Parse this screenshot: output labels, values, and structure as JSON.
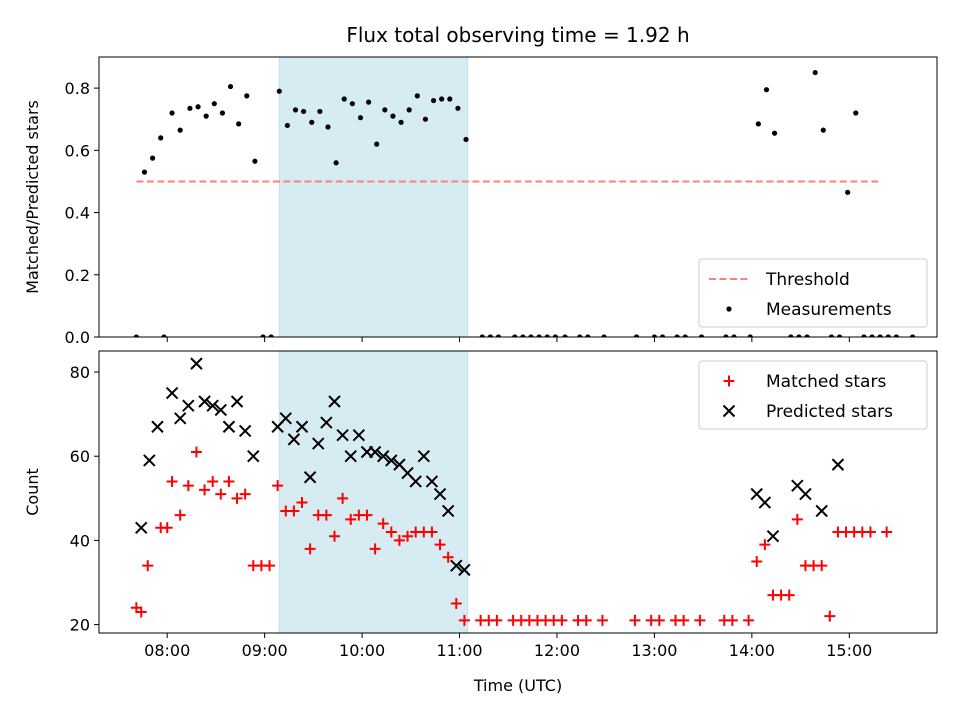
{
  "chart_data": {
    "title": "Flux total observing time = 1.92 h",
    "xlabel": "Time (UTC)",
    "x_range": [
      "07:18",
      "15:54"
    ],
    "x_ticks": [
      "08:00",
      "09:00",
      "10:00",
      "11:00",
      "12:00",
      "13:00",
      "14:00",
      "15:00"
    ],
    "shaded_interval": {
      "start": "09:09",
      "end": "11:05",
      "color": "#add8e6"
    },
    "panels": [
      {
        "type": "scatter",
        "ylabel": "Matched/Predicted stars",
        "ylim": [
          0.0,
          0.9
        ],
        "y_ticks": [
          "0.0",
          "0.2",
          "0.4",
          "0.6",
          "0.8"
        ],
        "legend_position": "lower-right",
        "legend": [
          "Threshold",
          "Measurements"
        ],
        "threshold": {
          "name": "Threshold",
          "value": 0.5,
          "x_start": "07:41",
          "x_end": "15:18",
          "color": "#ff7f7f",
          "style": "dashed"
        },
        "series": [
          {
            "name": "Measurements",
            "color": "#000000",
            "marker": "dot",
            "points": [
              [
                "07:41",
                0.0
              ],
              [
                "07:46",
                0.53
              ],
              [
                "07:51",
                0.575
              ],
              [
                "07:56",
                0.64
              ],
              [
                "07:58",
                0.0
              ],
              [
                "08:03",
                0.72
              ],
              [
                "08:08",
                0.665
              ],
              [
                "08:14",
                0.735
              ],
              [
                "08:19",
                0.74
              ],
              [
                "08:24",
                0.71
              ],
              [
                "08:29",
                0.75
              ],
              [
                "08:34",
                0.72
              ],
              [
                "08:39",
                0.805
              ],
              [
                "08:44",
                0.685
              ],
              [
                "08:49",
                0.775
              ],
              [
                "08:54",
                0.565
              ],
              [
                "08:59",
                0.0
              ],
              [
                "09:04",
                0.0
              ],
              [
                "09:09",
                0.79
              ],
              [
                "09:14",
                0.68
              ],
              [
                "09:19",
                0.73
              ],
              [
                "09:24",
                0.725
              ],
              [
                "09:29",
                0.69
              ],
              [
                "09:34",
                0.725
              ],
              [
                "09:39",
                0.675
              ],
              [
                "09:44",
                0.56
              ],
              [
                "09:49",
                0.765
              ],
              [
                "09:54",
                0.75
              ],
              [
                "09:59",
                0.705
              ],
              [
                "10:04",
                0.755
              ],
              [
                "10:09",
                0.62
              ],
              [
                "10:14",
                0.73
              ],
              [
                "10:19",
                0.71
              ],
              [
                "10:24",
                0.69
              ],
              [
                "10:29",
                0.73
              ],
              [
                "10:34",
                0.775
              ],
              [
                "10:39",
                0.7
              ],
              [
                "10:44",
                0.76
              ],
              [
                "10:49",
                0.765
              ],
              [
                "10:54",
                0.765
              ],
              [
                "10:59",
                0.735
              ],
              [
                "11:04",
                0.635
              ],
              [
                "11:14",
                0.0
              ],
              [
                "11:19",
                0.0
              ],
              [
                "11:24",
                0.0
              ],
              [
                "11:34",
                0.0
              ],
              [
                "11:39",
                0.0
              ],
              [
                "11:44",
                0.0
              ],
              [
                "11:49",
                0.0
              ],
              [
                "11:54",
                0.0
              ],
              [
                "11:59",
                0.0
              ],
              [
                "12:05",
                0.0
              ],
              [
                "12:14",
                0.0
              ],
              [
                "12:19",
                0.0
              ],
              [
                "12:29",
                0.0
              ],
              [
                "12:49",
                0.0
              ],
              [
                "13:00",
                0.0
              ],
              [
                "13:05",
                0.0
              ],
              [
                "13:14",
                0.0
              ],
              [
                "13:19",
                0.0
              ],
              [
                "13:29",
                0.0
              ],
              [
                "13:44",
                0.0
              ],
              [
                "13:49",
                0.0
              ],
              [
                "13:59",
                0.0
              ],
              [
                "14:04",
                0.685
              ],
              [
                "14:09",
                0.795
              ],
              [
                "14:14",
                0.655
              ],
              [
                "14:24",
                0.0
              ],
              [
                "14:29",
                0.0
              ],
              [
                "14:34",
                0.0
              ],
              [
                "14:39",
                0.85
              ],
              [
                "14:44",
                0.665
              ],
              [
                "14:49",
                0.0
              ],
              [
                "14:54",
                0.0
              ],
              [
                "14:59",
                0.465
              ],
              [
                "15:04",
                0.72
              ],
              [
                "15:09",
                0.0
              ],
              [
                "15:14",
                0.0
              ],
              [
                "15:19",
                0.0
              ],
              [
                "15:24",
                0.0
              ],
              [
                "15:29",
                0.0
              ],
              [
                "15:39",
                0.0
              ]
            ]
          }
        ]
      },
      {
        "type": "scatter",
        "ylabel": "Count",
        "ylim": [
          18,
          85
        ],
        "y_ticks": [
          "20",
          "40",
          "60",
          "80"
        ],
        "legend_position": "upper-right",
        "legend": [
          "Matched stars",
          "Predicted stars"
        ],
        "series": [
          {
            "name": "Matched stars",
            "color": "#ff0000",
            "marker": "plus",
            "points": [
              [
                "07:41",
                24
              ],
              [
                "07:44",
                23
              ],
              [
                "07:48",
                34
              ],
              [
                "07:56",
                43
              ],
              [
                "08:00",
                43
              ],
              [
                "08:03",
                54
              ],
              [
                "08:08",
                46
              ],
              [
                "08:13",
                53
              ],
              [
                "08:18",
                61
              ],
              [
                "08:23",
                52
              ],
              [
                "08:28",
                54
              ],
              [
                "08:33",
                51
              ],
              [
                "08:38",
                54
              ],
              [
                "08:43",
                50
              ],
              [
                "08:48",
                51
              ],
              [
                "08:53",
                34
              ],
              [
                "08:58",
                34
              ],
              [
                "09:03",
                34
              ],
              [
                "09:08",
                53
              ],
              [
                "09:13",
                47
              ],
              [
                "09:18",
                47
              ],
              [
                "09:23",
                49
              ],
              [
                "09:28",
                38
              ],
              [
                "09:33",
                46
              ],
              [
                "09:38",
                46
              ],
              [
                "09:43",
                41
              ],
              [
                "09:48",
                50
              ],
              [
                "09:53",
                45
              ],
              [
                "09:58",
                46
              ],
              [
                "10:03",
                46
              ],
              [
                "10:08",
                38
              ],
              [
                "10:13",
                44
              ],
              [
                "10:18",
                42
              ],
              [
                "10:23",
                40
              ],
              [
                "10:28",
                41
              ],
              [
                "10:33",
                42
              ],
              [
                "10:38",
                42
              ],
              [
                "10:43",
                42
              ],
              [
                "10:48",
                39
              ],
              [
                "10:53",
                36
              ],
              [
                "10:58",
                25
              ],
              [
                "11:03",
                21
              ],
              [
                "11:13",
                21
              ],
              [
                "11:18",
                21
              ],
              [
                "11:23",
                21
              ],
              [
                "11:33",
                21
              ],
              [
                "11:38",
                21
              ],
              [
                "11:43",
                21
              ],
              [
                "11:48",
                21
              ],
              [
                "11:53",
                21
              ],
              [
                "11:58",
                21
              ],
              [
                "12:03",
                21
              ],
              [
                "12:13",
                21
              ],
              [
                "12:18",
                21
              ],
              [
                "12:28",
                21
              ],
              [
                "12:48",
                21
              ],
              [
                "12:58",
                21
              ],
              [
                "13:03",
                21
              ],
              [
                "13:13",
                21
              ],
              [
                "13:18",
                21
              ],
              [
                "13:28",
                21
              ],
              [
                "13:43",
                21
              ],
              [
                "13:48",
                21
              ],
              [
                "13:58",
                21
              ],
              [
                "14:03",
                35
              ],
              [
                "14:08",
                39
              ],
              [
                "14:13",
                27
              ],
              [
                "14:18",
                27
              ],
              [
                "14:23",
                27
              ],
              [
                "14:28",
                45
              ],
              [
                "14:33",
                34
              ],
              [
                "14:38",
                34
              ],
              [
                "14:43",
                34
              ],
              [
                "14:48",
                22
              ],
              [
                "14:53",
                42
              ],
              [
                "14:58",
                42
              ],
              [
                "15:03",
                42
              ],
              [
                "15:08",
                42
              ],
              [
                "15:13",
                42
              ],
              [
                "15:23",
                42
              ]
            ]
          },
          {
            "name": "Predicted stars",
            "color": "#000000",
            "marker": "x",
            "points": [
              [
                "07:44",
                43
              ],
              [
                "07:49",
                59
              ],
              [
                "07:54",
                67
              ],
              [
                "08:03",
                75
              ],
              [
                "08:08",
                69
              ],
              [
                "08:13",
                72
              ],
              [
                "08:18",
                82
              ],
              [
                "08:23",
                73
              ],
              [
                "08:28",
                72
              ],
              [
                "08:33",
                71
              ],
              [
                "08:38",
                67
              ],
              [
                "08:43",
                73
              ],
              [
                "08:48",
                66
              ],
              [
                "08:53",
                60
              ],
              [
                "09:08",
                67
              ],
              [
                "09:13",
                69
              ],
              [
                "09:18",
                64
              ],
              [
                "09:23",
                67
              ],
              [
                "09:28",
                55
              ],
              [
                "09:33",
                63
              ],
              [
                "09:38",
                68
              ],
              [
                "09:43",
                73
              ],
              [
                "09:48",
                65
              ],
              [
                "09:53",
                60
              ],
              [
                "09:58",
                65
              ],
              [
                "10:03",
                61
              ],
              [
                "10:08",
                61
              ],
              [
                "10:13",
                60
              ],
              [
                "10:18",
                59
              ],
              [
                "10:23",
                58
              ],
              [
                "10:28",
                56
              ],
              [
                "10:33",
                54
              ],
              [
                "10:38",
                60
              ],
              [
                "10:43",
                54
              ],
              [
                "10:48",
                51
              ],
              [
                "10:53",
                47
              ],
              [
                "10:58",
                34
              ],
              [
                "11:03",
                33
              ],
              [
                "14:03",
                51
              ],
              [
                "14:08",
                49
              ],
              [
                "14:13",
                41
              ],
              [
                "14:28",
                53
              ],
              [
                "14:33",
                51
              ],
              [
                "14:43",
                47
              ],
              [
                "14:53",
                58
              ]
            ]
          }
        ]
      }
    ]
  }
}
